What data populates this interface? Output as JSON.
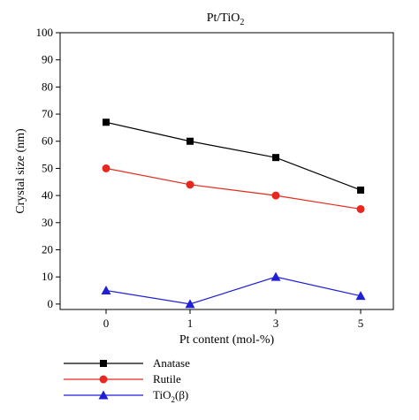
{
  "chart_data": {
    "type": "line",
    "title": "Pt/TiO",
    "title_subscript": "2",
    "xlabel": "Pt content (mol-%)",
    "ylabel": "Crystal size (nm)",
    "x": [
      0,
      1,
      3,
      5
    ],
    "x_tick_labels": [
      "0",
      "1",
      "3",
      "5"
    ],
    "y_ticks": [
      0,
      10,
      20,
      30,
      40,
      50,
      60,
      70,
      80,
      90,
      100
    ],
    "ylim": [
      -2,
      100
    ],
    "grid": false,
    "legend_position": "bottom-left",
    "series": [
      {
        "name": "Anatase",
        "values": [
          67,
          60,
          54,
          42
        ],
        "color": "#000000",
        "marker": "square"
      },
      {
        "name": "Rutile",
        "values": [
          50,
          44,
          40,
          35
        ],
        "color": "#e8281e",
        "marker": "circle"
      },
      {
        "name": "TiO",
        "name_subscript": "2",
        "name_suffix": "(β)",
        "values": [
          5,
          0,
          10,
          3
        ],
        "color": "#1f1fd8",
        "marker": "triangle"
      }
    ]
  }
}
